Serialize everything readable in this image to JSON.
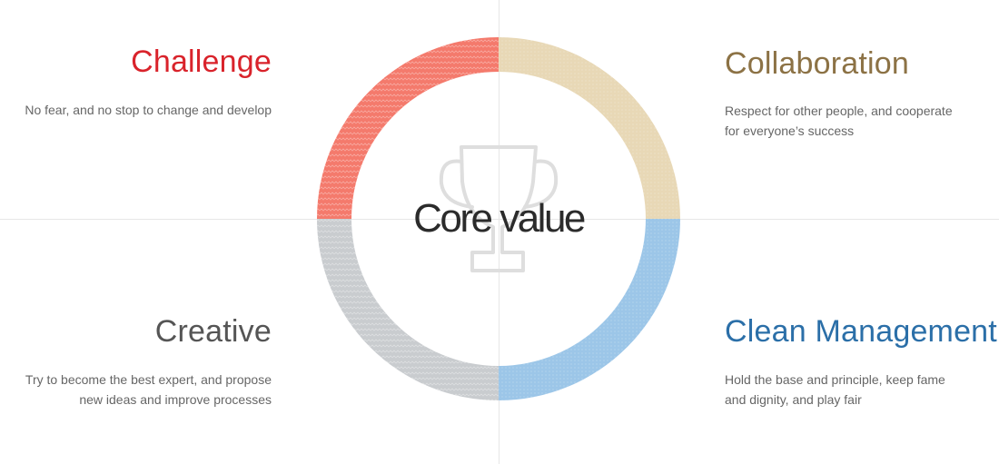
{
  "center": {
    "title": "Core value",
    "icon": "trophy-icon"
  },
  "quadrants": {
    "challenge": {
      "title": "Challenge",
      "description": "No fear, and no stop to change and develop",
      "color": "#d9232b",
      "ring_color": "#f47a6c"
    },
    "collaboration": {
      "title": "Collaboration",
      "description_line1": "Respect for other people, and cooperate",
      "description_line2": "for everyone’s success",
      "color": "#8c7245",
      "ring_color": "#e8d8b6"
    },
    "creative": {
      "title": "Creative",
      "description_line1": "Try to become the best expert, and propose",
      "description_line2": "new ideas and improve processes",
      "color": "#555555",
      "ring_color": "#c9cccf"
    },
    "clean_management": {
      "title": "Clean Management",
      "description_line1": "Hold the base and principle, keep fame",
      "description_line2": "and dignity, and play fair",
      "color": "#2b6fa8",
      "ring_color": "#9cc6e8"
    }
  }
}
